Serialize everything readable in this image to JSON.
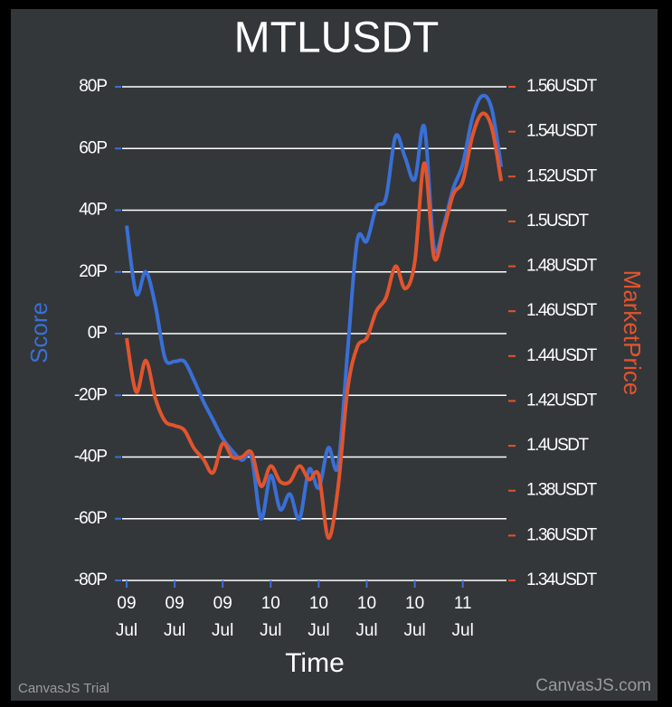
{
  "chart_data": {
    "type": "line",
    "title": "MTLUSDT",
    "x_label": "Time",
    "y_label": "Score",
    "y2_label": "MarketPrice",
    "watermark_left": "CanvasJS Trial",
    "watermark_right": "CanvasJS.com",
    "grid": true,
    "x": [
      0,
      0.2,
      0.4,
      0.6,
      0.8,
      1.0,
      1.2,
      1.4,
      1.6,
      1.8,
      2.0,
      2.2,
      2.4,
      2.6,
      2.8,
      3.0,
      3.2,
      3.4,
      3.6,
      3.8,
      4.0,
      4.2,
      4.4,
      4.6,
      4.8,
      5.0,
      5.2,
      5.4,
      5.6,
      5.8,
      6.0,
      6.2,
      6.4,
      6.6,
      6.8,
      7.0,
      7.2,
      7.4,
      7.6,
      7.8
    ],
    "xlim": [
      -0.1,
      7.95
    ],
    "xticks": [
      {
        "value": 0,
        "label": "09 Jul"
      },
      {
        "value": 1,
        "label": "09 Jul"
      },
      {
        "value": 2,
        "label": "09 Jul"
      },
      {
        "value": 3,
        "label": "10 Jul"
      },
      {
        "value": 4,
        "label": "10 Jul"
      },
      {
        "value": 5,
        "label": "10 Jul"
      },
      {
        "value": 6,
        "label": "10 Jul"
      },
      {
        "value": 7,
        "label": "11 Jul"
      }
    ],
    "ylim": [
      -80,
      80
    ],
    "yticks": [
      {
        "value": -80,
        "label": "-80P"
      },
      {
        "value": -60,
        "label": "-60P"
      },
      {
        "value": -40,
        "label": "-40P"
      },
      {
        "value": -20,
        "label": "-20P"
      },
      {
        "value": 0,
        "label": "0P"
      },
      {
        "value": 20,
        "label": "20P"
      },
      {
        "value": 40,
        "label": "40P"
      },
      {
        "value": 60,
        "label": "60P"
      },
      {
        "value": 80,
        "label": "80P"
      }
    ],
    "y2lim": [
      1.34,
      1.56
    ],
    "y2ticks": [
      {
        "value": 1.34,
        "label": "1.34USDT"
      },
      {
        "value": 1.36,
        "label": "1.36USDT"
      },
      {
        "value": 1.38,
        "label": "1.38USDT"
      },
      {
        "value": 1.4,
        "label": "1.4USDT"
      },
      {
        "value": 1.42,
        "label": "1.42USDT"
      },
      {
        "value": 1.44,
        "label": "1.44USDT"
      },
      {
        "value": 1.46,
        "label": "1.46USDT"
      },
      {
        "value": 1.48,
        "label": "1.48USDT"
      },
      {
        "value": 1.5,
        "label": "1.5USDT"
      },
      {
        "value": 1.52,
        "label": "1.52USDT"
      },
      {
        "value": 1.54,
        "label": "1.54USDT"
      },
      {
        "value": 1.56,
        "label": "1.56USDT"
      }
    ],
    "series": [
      {
        "name": "Score",
        "color": "#3a6fd6",
        "axis": "y",
        "values": [
          35,
          13,
          20,
          9,
          -8,
          -9,
          -9,
          -15,
          -22,
          -28,
          -34,
          -38,
          -41,
          -40,
          -60,
          -46,
          -57,
          -52,
          -60,
          -44,
          -50,
          -37,
          -43,
          -6,
          30,
          30,
          41,
          44,
          64,
          57,
          50,
          67,
          28,
          35,
          47,
          55,
          70,
          77,
          73,
          54
        ]
      },
      {
        "name": "MarketPrice",
        "color": "#e2542d",
        "axis": "y2",
        "values": [
          1.448,
          1.424,
          1.438,
          1.421,
          1.411,
          1.409,
          1.407,
          1.399,
          1.394,
          1.388,
          1.401,
          1.395,
          1.395,
          1.397,
          1.382,
          1.391,
          1.384,
          1.384,
          1.391,
          1.385,
          1.387,
          1.359,
          1.381,
          1.425,
          1.444,
          1.448,
          1.46,
          1.466,
          1.48,
          1.47,
          1.482,
          1.526,
          1.484,
          1.496,
          1.512,
          1.518,
          1.538,
          1.548,
          1.542,
          1.518
        ]
      }
    ]
  }
}
